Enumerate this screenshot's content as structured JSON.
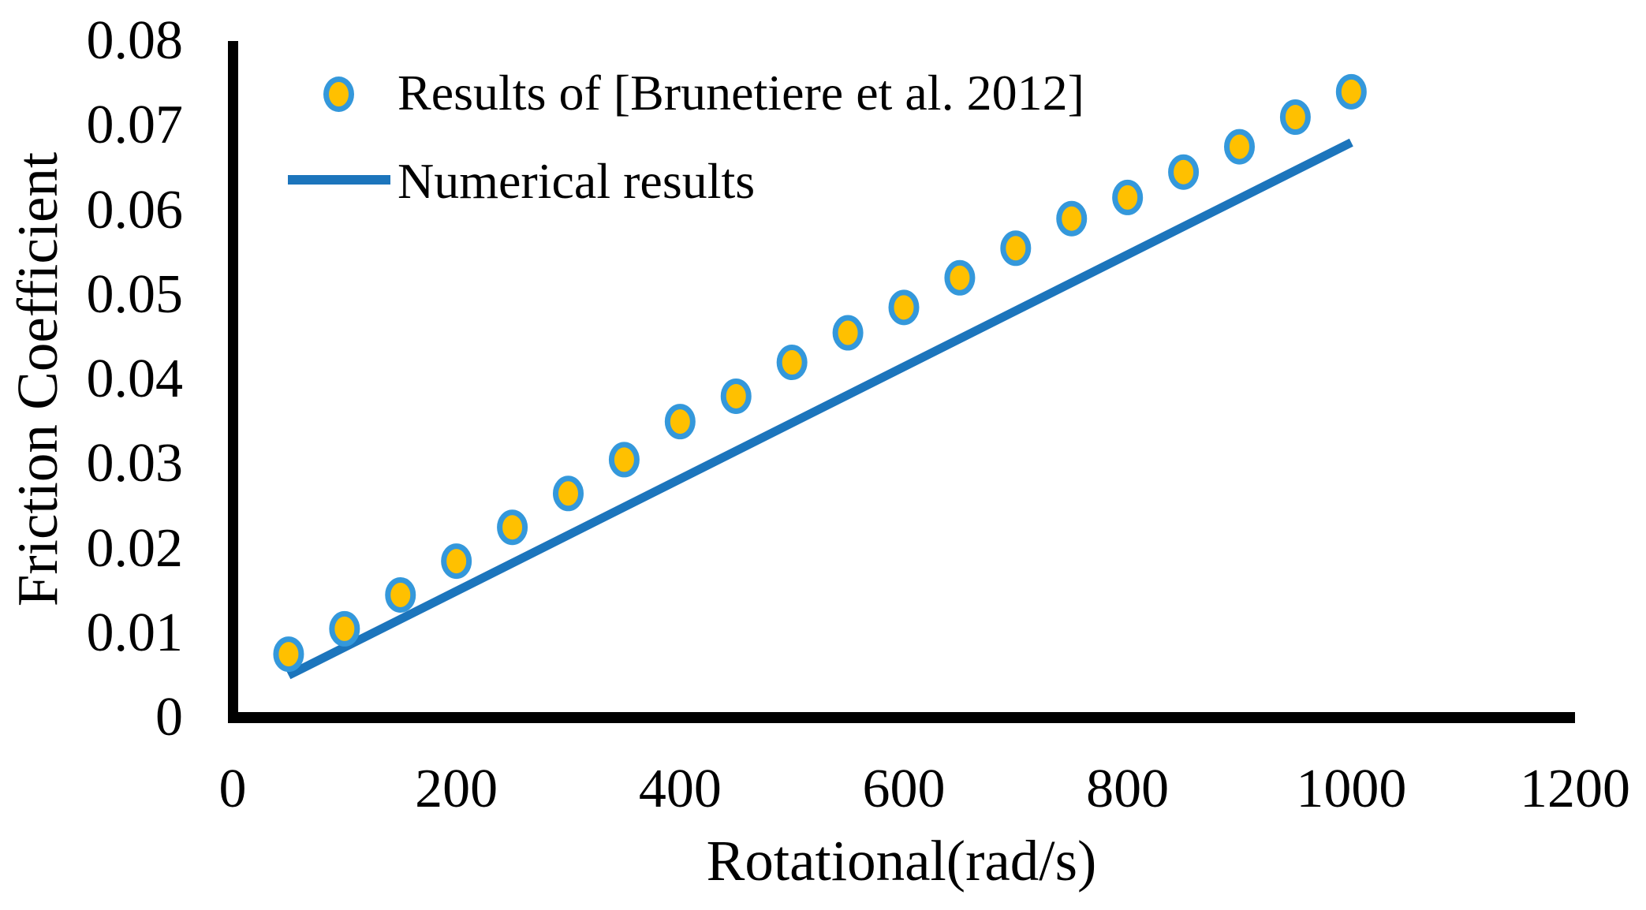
{
  "figure": {
    "background_color": "#ffffff",
    "axis_color": "#000000",
    "text_color": "#000000"
  },
  "chart_data": {
    "type": "scatter",
    "title": "",
    "xlabel": "Rotational(rad/s)",
    "ylabel": "Friction Coefficient",
    "xlim": [
      0,
      1200
    ],
    "ylim": [
      0,
      0.08
    ],
    "x_ticks": [
      "0",
      "200",
      "400",
      "600",
      "800",
      "1000",
      "1200"
    ],
    "y_ticks": [
      "0",
      "0.01",
      "0.02",
      "0.03",
      "0.04",
      "0.05",
      "0.06",
      "0.07",
      "0.08"
    ],
    "grid": false,
    "legend_position": "inside-top-left",
    "series": [
      {
        "name": "Results of [Brunetiere et al. 2012]",
        "type": "scatter",
        "marker_fill": "#FFC000",
        "marker_stroke": "#3498DB",
        "x": [
          50,
          100,
          150,
          200,
          250,
          300,
          350,
          400,
          450,
          500,
          550,
          600,
          650,
          700,
          750,
          800,
          850,
          900,
          950,
          1000
        ],
        "y": [
          0.0075,
          0.0105,
          0.0145,
          0.0185,
          0.0225,
          0.0265,
          0.0305,
          0.035,
          0.038,
          0.042,
          0.0455,
          0.0485,
          0.052,
          0.0555,
          0.059,
          0.0615,
          0.0645,
          0.0675,
          0.071,
          0.074
        ]
      },
      {
        "name": "Numerical results",
        "type": "line",
        "color": "#1C75BC",
        "x": [
          50,
          1000
        ],
        "y": [
          0.005,
          0.068
        ]
      }
    ]
  }
}
